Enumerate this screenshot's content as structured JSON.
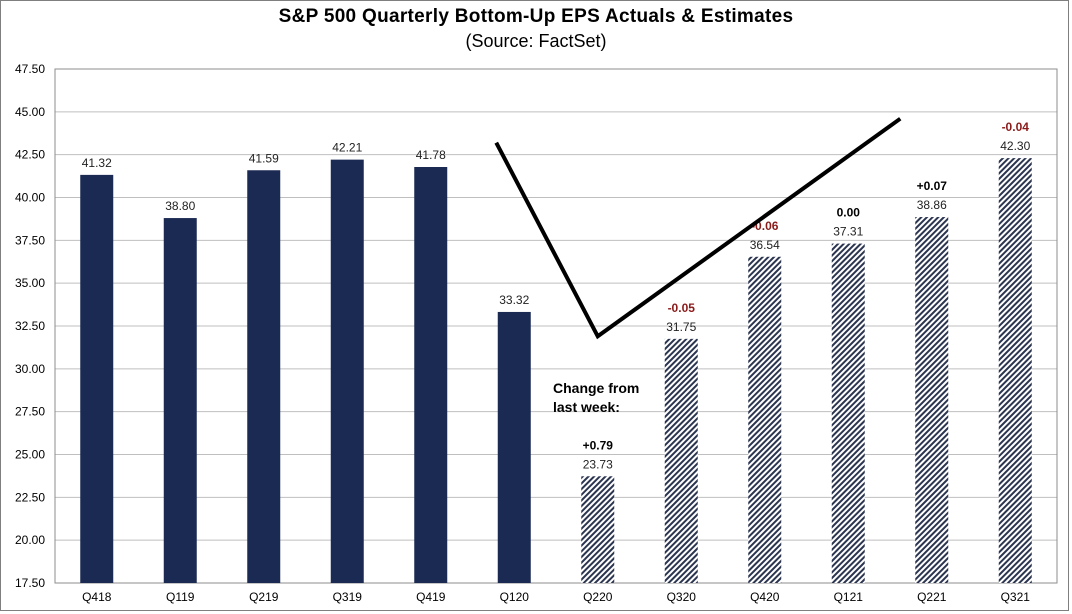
{
  "chart_data": {
    "type": "bar",
    "title": "S&P 500 Quarterly Bottom-Up EPS Actuals & Estimates",
    "subtitle": "(Source: FactSet)",
    "xlabel": "",
    "ylabel": "",
    "ylim": [
      17.5,
      47.5
    ],
    "yticks": [
      "17.50",
      "20.00",
      "22.50",
      "25.00",
      "27.50",
      "30.00",
      "32.50",
      "35.00",
      "37.50",
      "40.00",
      "42.50",
      "45.00",
      "47.50"
    ],
    "grid": true,
    "categories": [
      "Q418",
      "Q119",
      "Q219",
      "Q319",
      "Q419",
      "Q120",
      "Q220",
      "Q320",
      "Q420",
      "Q121",
      "Q221",
      "Q321"
    ],
    "values": [
      41.32,
      38.8,
      41.59,
      42.21,
      41.78,
      33.32,
      23.73,
      31.75,
      36.54,
      37.31,
      38.86,
      42.3
    ],
    "value_labels": [
      "41.32",
      "38.80",
      "41.59",
      "42.21",
      "41.78",
      "33.32",
      "23.73",
      "31.75",
      "36.54",
      "37.31",
      "38.86",
      "42.30"
    ],
    "bar_kind": [
      "actual",
      "actual",
      "actual",
      "actual",
      "actual",
      "actual",
      "estimate",
      "estimate",
      "estimate",
      "estimate",
      "estimate",
      "estimate"
    ],
    "weekly_change": [
      "",
      "",
      "",
      "",
      "",
      "",
      "+0.79",
      "-0.05",
      "-0.06",
      "0.00",
      "+0.07",
      "-0.04"
    ],
    "weekly_change_colors": [
      "",
      "",
      "",
      "",
      "",
      "",
      "#000000",
      "#8b1a1a",
      "#8b1a1a",
      "#000000",
      "#000000",
      "#8b1a1a"
    ],
    "annotation_line1": "Change from",
    "annotation_line2": "last week:",
    "v_shape_line": [
      {
        "category": "Q120",
        "y": 43.2
      },
      {
        "category": "Q220",
        "y": 31.9
      },
      {
        "category": "Q121",
        "y": 44.6
      }
    ],
    "colors": {
      "actual": "#1b2a52",
      "estimate_hatch": "#2b3550",
      "grid": "#bfbfbf",
      "v_line": "#000000"
    }
  }
}
